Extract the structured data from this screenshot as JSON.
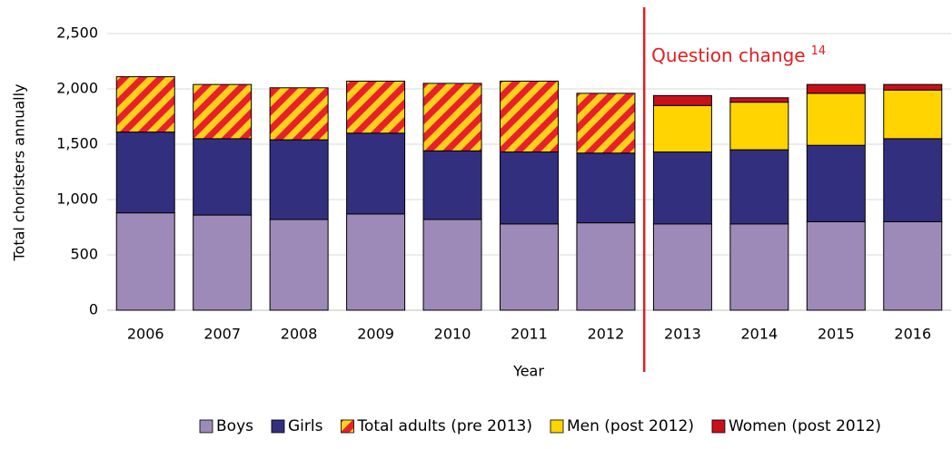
{
  "chart_data": {
    "type": "stacked_bar",
    "categories": [
      "2006",
      "2007",
      "2008",
      "2009",
      "2010",
      "2011",
      "2012",
      "2013",
      "2014",
      "2015",
      "2016"
    ],
    "series": [
      {
        "name": "Boys",
        "color": "#9e8ab8",
        "values": [
          880,
          860,
          820,
          870,
          820,
          780,
          790,
          780,
          780,
          800,
          800
        ]
      },
      {
        "name": "Girls",
        "color": "#332f7f",
        "values": [
          730,
          690,
          720,
          730,
          620,
          650,
          630,
          650,
          670,
          690,
          750
        ]
      },
      {
        "name": "Total adults (pre 2013)",
        "color": "#ffd11a",
        "hatch": "#e8202a",
        "values": [
          500,
          490,
          470,
          470,
          610,
          640,
          540,
          null,
          null,
          null,
          null
        ]
      },
      {
        "name": "Men (post 2012)",
        "color": "#ffd400",
        "values": [
          null,
          null,
          null,
          null,
          null,
          null,
          null,
          420,
          430,
          470,
          440
        ]
      },
      {
        "name": "Women (post 2012)",
        "color": "#c8101a",
        "values": [
          null,
          null,
          null,
          null,
          null,
          null,
          null,
          90,
          40,
          80,
          50
        ]
      }
    ],
    "ylim": [
      0,
      2500
    ],
    "yticks": [
      0,
      500,
      {
        "value": 1000,
        "label": "1,000"
      },
      {
        "value": 1500,
        "label": "1,500"
      },
      {
        "value": 2000,
        "label": "2,000"
      },
      {
        "value": 2500,
        "label": "2,500"
      }
    ],
    "ylabel": "Total choristers annually",
    "xlabel": "Year",
    "annotation": {
      "text": "Question change",
      "superscript": "14",
      "color": "#e02020"
    },
    "legend": "bottom"
  }
}
